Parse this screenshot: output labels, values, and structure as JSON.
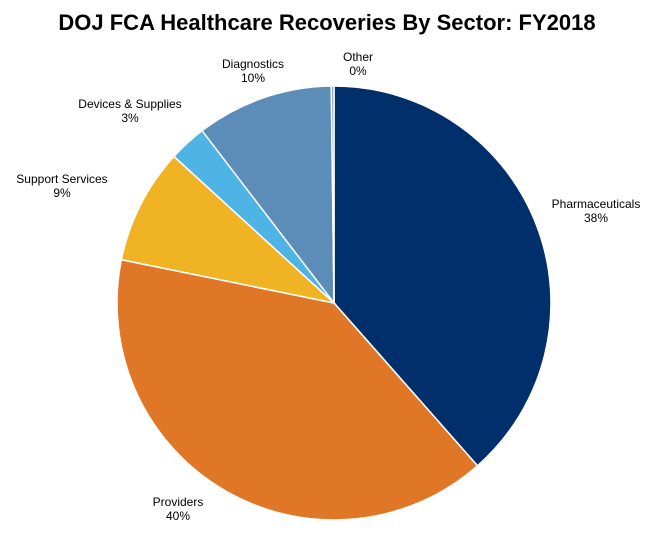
{
  "chart_data": {
    "type": "pie",
    "title": "DOJ FCA Healthcare Recoveries By Sector: FY2018",
    "slices": [
      {
        "name": "Pharmaceuticals",
        "pct_label": "38%",
        "value": 38.5,
        "color": "#002F6C"
      },
      {
        "name": "Providers",
        "pct_label": "40%",
        "value": 39.7,
        "color": "#E07727"
      },
      {
        "name": "Support Services",
        "pct_label": "9%",
        "value": 8.6,
        "color": "#F0B323"
      },
      {
        "name": "Devices & Supplies",
        "pct_label": "3%",
        "value": 2.8,
        "color": "#4EB3E5"
      },
      {
        "name": "Diagnostics",
        "pct_label": "10%",
        "value": 10.2,
        "color": "#5B8DB8"
      },
      {
        "name": "Other",
        "pct_label": "0%",
        "value": 0.2,
        "color": "#7F9BB8"
      }
    ],
    "legend": "none",
    "labels": "outside"
  }
}
